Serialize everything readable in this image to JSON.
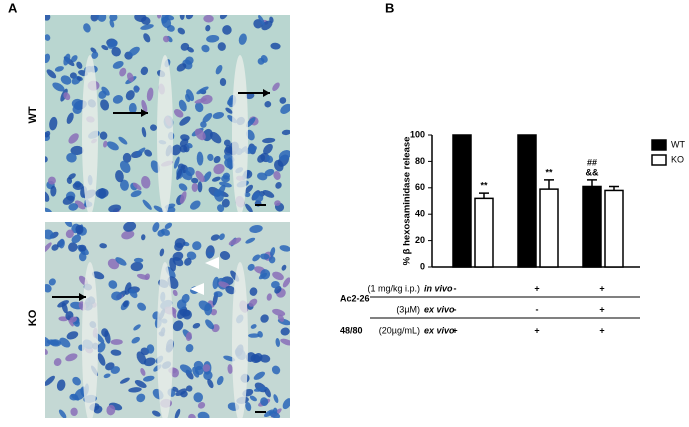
{
  "panel_labels": [
    "A",
    "B"
  ],
  "image_labels": [
    "WT",
    "KO"
  ],
  "chart_data": {
    "type": "bar",
    "ylabel": "% β hexosaminidase release",
    "categories": [
      null,
      null,
      null
    ],
    "series": [
      {
        "name": "WT",
        "color": "#000000",
        "values": [
          100,
          100,
          61
        ],
        "errors": [
          0,
          0,
          5
        ],
        "annotations": [
          null,
          null,
          [
            "##",
            "&&"
          ]
        ]
      },
      {
        "name": "KO",
        "color": "#ffffff",
        "values": [
          52,
          59,
          58
        ],
        "errors": [
          4,
          7,
          3
        ],
        "annotations": [
          "**",
          "**",
          null
        ]
      }
    ],
    "ylim": [
      0,
      100
    ],
    "yticks": [
      0,
      20,
      40,
      60,
      80,
      100
    ],
    "legend": "right"
  },
  "treatment_table": {
    "rows": [
      {
        "group": "Ac2-26",
        "dose": "(1 mg/kg i.p.)",
        "route": "in vivo",
        "signs": [
          "-",
          "+",
          "+"
        ]
      },
      {
        "dose": "(3µM)",
        "route": "ex vivo",
        "signs": [
          "-",
          "-",
          "+"
        ]
      },
      {
        "group": "48/80",
        "dose": "(20µg/mL)",
        "route": "ex vivo",
        "signs": [
          "+",
          "+",
          "+"
        ]
      }
    ]
  }
}
